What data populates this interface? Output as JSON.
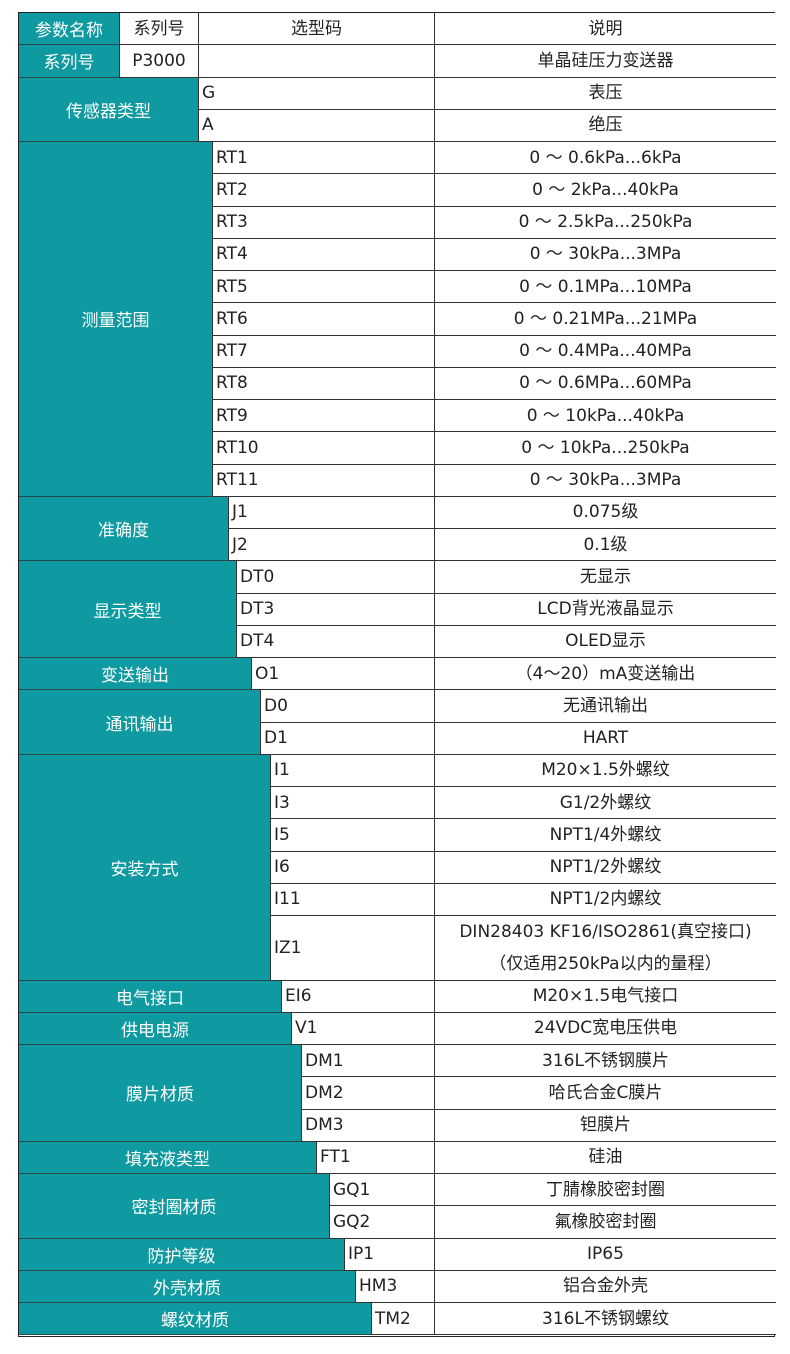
{
  "header": {
    "param_name": "参数名称",
    "series": "系列号",
    "code": "选型码",
    "desc": "说明"
  },
  "series_row": {
    "label": "系列号",
    "value": "P3000",
    "desc": "单晶硅压力变送器"
  },
  "groups": [
    {
      "label": "传感器类型",
      "rows": [
        {
          "code": "G",
          "desc": "表压"
        },
        {
          "code": "A",
          "desc": "绝压"
        }
      ]
    },
    {
      "label": "测量范围",
      "rows": [
        {
          "code": "RT1",
          "desc": "0 ～ 0.6kPa...6kPa"
        },
        {
          "code": "RT2",
          "desc": "0 ～ 2kPa...40kPa"
        },
        {
          "code": "RT3",
          "desc": "0 ～ 2.5kPa...250kPa"
        },
        {
          "code": "RT4",
          "desc": "0 ～ 30kPa...3MPa"
        },
        {
          "code": "RT5",
          "desc": "0 ～ 0.1MPa...10MPa"
        },
        {
          "code": "RT6",
          "desc": "0 ～ 0.21MPa...21MPa"
        },
        {
          "code": "RT7",
          "desc": "0 ～ 0.4MPa...40MPa"
        },
        {
          "code": "RT8",
          "desc": "0 ～ 0.6MPa...60MPa"
        },
        {
          "code": "RT9",
          "desc": "0 ～ 10kPa...40kPa"
        },
        {
          "code": "RT10",
          "desc": "0 ～ 10kPa...250kPa"
        },
        {
          "code": "RT11",
          "desc": "0 ～ 30kPa...3MPa"
        }
      ]
    },
    {
      "label": "准确度",
      "rows": [
        {
          "code": "J1",
          "desc": "0.075级"
        },
        {
          "code": "J2",
          "desc": "0.1级"
        }
      ]
    },
    {
      "label": "显示类型",
      "rows": [
        {
          "code": "DT0",
          "desc": "无显示"
        },
        {
          "code": "DT3",
          "desc": "LCD背光液晶显示"
        },
        {
          "code": "DT4",
          "desc": "OLED显示"
        }
      ]
    },
    {
      "label": "变送输出",
      "rows": [
        {
          "code": "O1",
          "desc": "（4～20）mA变送输出"
        }
      ]
    },
    {
      "label": "通讯输出",
      "rows": [
        {
          "code": "D0",
          "desc": "无通讯输出"
        },
        {
          "code": "D1",
          "desc": "HART"
        }
      ]
    },
    {
      "label": "安装方式",
      "rows": [
        {
          "code": "I1",
          "desc": "M20×1.5外螺纹"
        },
        {
          "code": "I3",
          "desc": "G1/2外螺纹"
        },
        {
          "code": "I5",
          "desc": "NPT1/4外螺纹"
        },
        {
          "code": "I6",
          "desc": "NPT1/2外螺纹"
        },
        {
          "code": "I11",
          "desc": "NPT1/2内螺纹"
        },
        {
          "code": "IZ1",
          "desc": "DIN28403 KF16/ISO2861(真空接口)",
          "desc2": "（仅适用250kPa以内的量程）"
        }
      ]
    },
    {
      "label": "电气接口",
      "rows": [
        {
          "code": "EI6",
          "desc": "M20×1.5电气接口"
        }
      ]
    },
    {
      "label": "供电电源",
      "rows": [
        {
          "code": "V1",
          "desc": "24VDC宽电压供电"
        }
      ]
    },
    {
      "label": "膜片材质",
      "rows": [
        {
          "code": "DM1",
          "desc": "316L不锈钢膜片"
        },
        {
          "code": "DM2",
          "desc": "哈氏合金C膜片"
        },
        {
          "code": "DM3",
          "desc": "钽膜片"
        }
      ]
    },
    {
      "label": "填充液类型",
      "rows": [
        {
          "code": "FT1",
          "desc": "硅油"
        }
      ]
    },
    {
      "label": "密封圈材质",
      "rows": [
        {
          "code": "GQ1",
          "desc": "丁腈橡胶密封圈"
        },
        {
          "code": "GQ2",
          "desc": "氟橡胶密封圈"
        }
      ]
    },
    {
      "label": "防护等级",
      "rows": [
        {
          "code": "IP1",
          "desc": "IP65"
        }
      ]
    },
    {
      "label": "外壳材质",
      "rows": [
        {
          "code": "HM3",
          "desc": "铝合金外壳"
        }
      ]
    },
    {
      "label": "螺纹材质",
      "rows": [
        {
          "code": "TM2",
          "desc": "316L不锈钢螺纹"
        }
      ]
    }
  ],
  "colors": {
    "label_bg": "#0e9aa0",
    "label_text": "#ffffff",
    "border": "#222222"
  }
}
